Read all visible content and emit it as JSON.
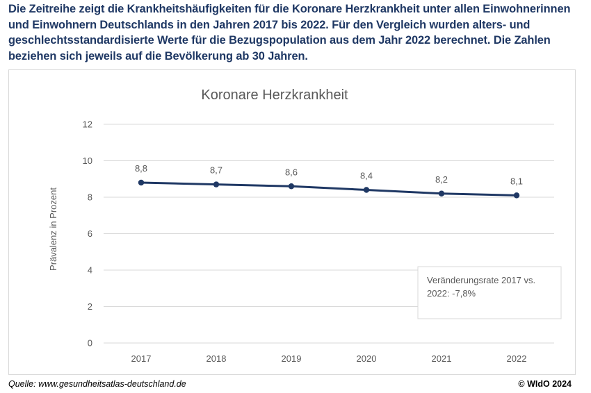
{
  "intro_text": "Die Zeitreihe zeigt die Krankheitshäufigkeiten für die Koronare Herzkrankheit unter allen Einwohnerinnen und Einwohnern Deutschlands in den Jahren 2017 bis 2022. Für den Vergleich wurden alters- und geschlechtsstandardisierte Werte für die Bezugspopulation aus dem Jahr 2022 berechnet. Die Zahlen beziehen sich jeweils auf die Bevölkerung ab 30 Jahren.",
  "footer": {
    "source": "Quelle: www.gesundheitsatlas-deutschland.de",
    "copyright": "© WIdO 2024"
  },
  "colors": {
    "intro_text": "#1f3864",
    "series_line": "#1f3864",
    "gridline": "#d9d9d9",
    "axis_text": "#595959"
  },
  "chart_data": {
    "type": "line",
    "title": "Koronare Herzkrankheit",
    "xlabel": "",
    "ylabel": "Prävalenz in Prozent",
    "ylim": [
      0,
      12
    ],
    "y_ticks": [
      "0",
      "2",
      "4",
      "6",
      "8",
      "10",
      "12"
    ],
    "categories": [
      "2017",
      "2018",
      "2019",
      "2020",
      "2021",
      "2022"
    ],
    "series": [
      {
        "values": [
          8.8,
          8.7,
          8.6,
          8.4,
          8.2,
          8.1
        ],
        "data_labels": [
          "8,8",
          "8,7",
          "8,6",
          "8,4",
          "8,2",
          "8,1"
        ]
      }
    ],
    "grid": true,
    "annotation": "Veränderungsrate 2017 vs. 2022: -7,8%"
  }
}
